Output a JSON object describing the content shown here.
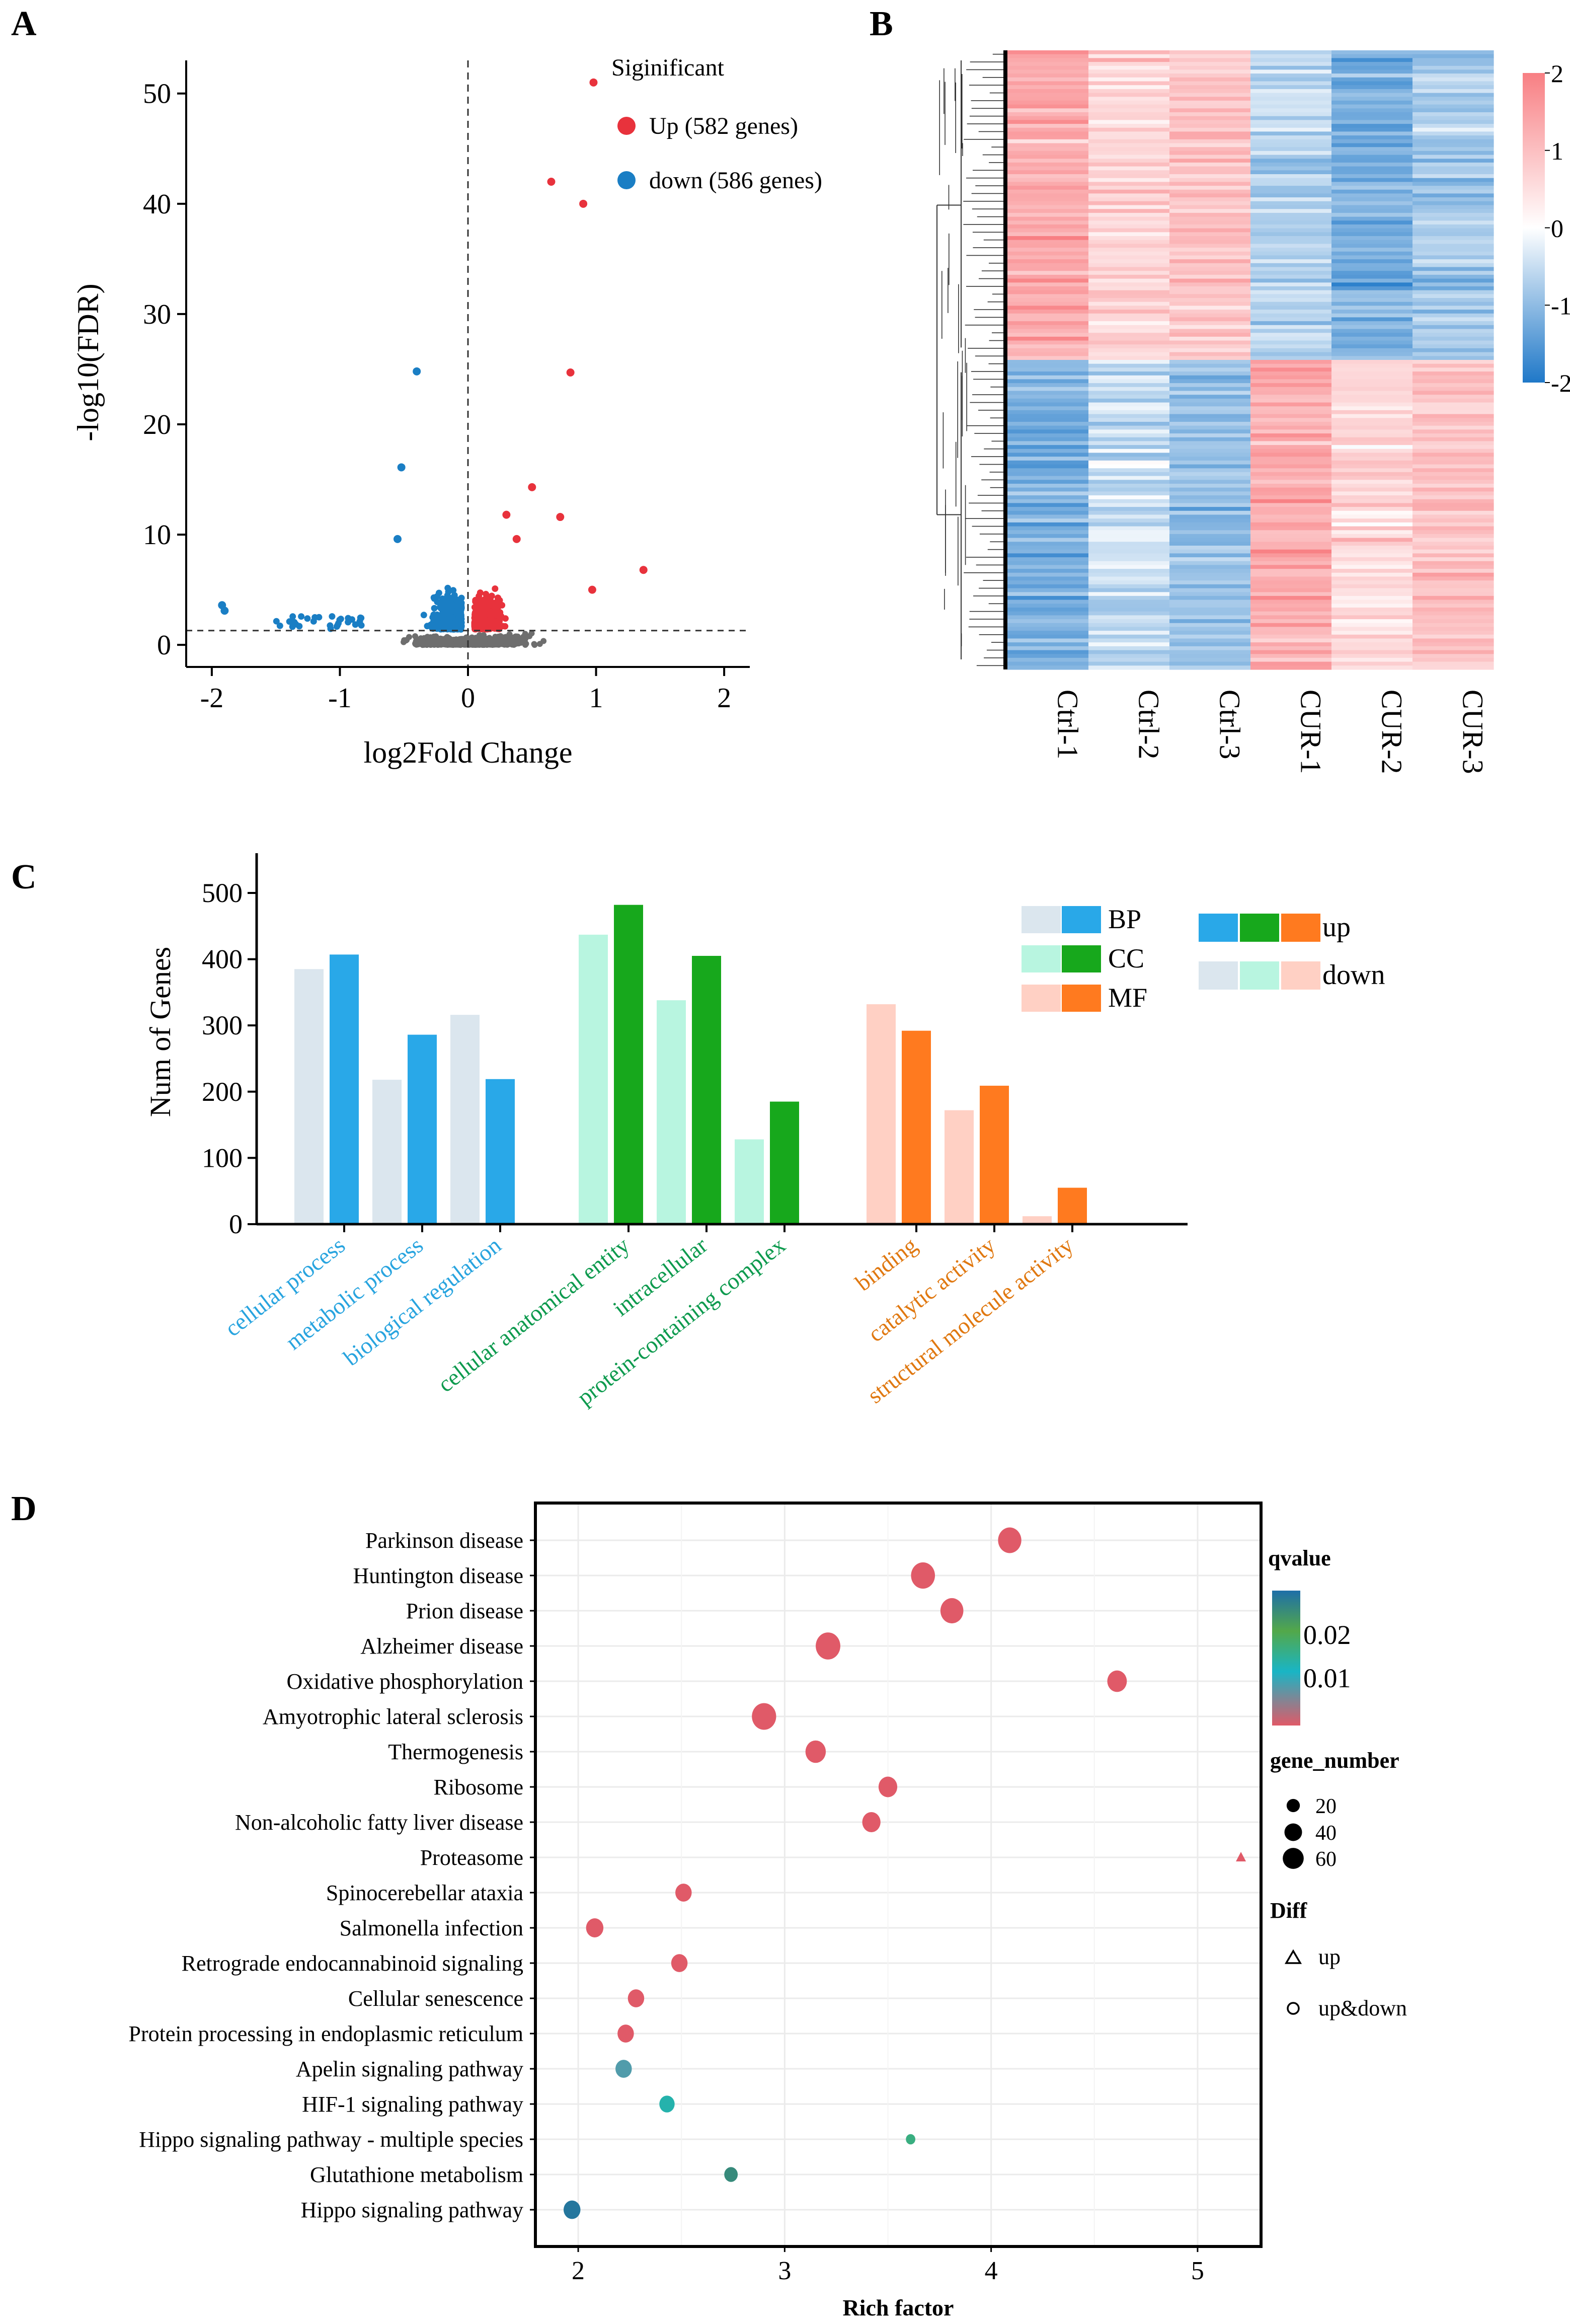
{
  "figure": {
    "panel_labels": [
      "A",
      "B",
      "C",
      "D"
    ]
  },
  "colors": {
    "up": "#e8323c",
    "down": "#1a7ec4",
    "ns": "#6e6e6e",
    "heat_low": "#1f78c8",
    "heat_mid": "#ffffff",
    "heat_high": "#f87f83",
    "bp_up": "#29a8e8",
    "bp_down": "#dbe6ee",
    "cc_up": "#17a81c",
    "cc_down": "#b8f5e0",
    "mf_up": "#ff7a1f",
    "mf_down": "#ffd0c4",
    "bp_text": "#28a4df",
    "cc_text": "#0d9a4e",
    "mf_text": "#e07810",
    "q_high": "#1e6fa8",
    "q_mid": "#19b5c5",
    "q_low": "#e05a68"
  },
  "chart_data": [
    {
      "type": "scatter",
      "id": "A",
      "xlabel": "log2Fold Change",
      "ylabel": "-log10(FDR)",
      "xlim": [
        -2.2,
        2.2
      ],
      "ylim": [
        -2,
        53
      ],
      "xticks": [
        "-2",
        "-1",
        "0",
        "1",
        "2"
      ],
      "xtick_values": [
        -2,
        -1,
        0,
        1,
        2
      ],
      "yticks": [
        "0",
        "10",
        "20",
        "30",
        "40",
        "50"
      ],
      "ytick_values": [
        0,
        10,
        20,
        30,
        40,
        50
      ],
      "threshold_y": 1.3,
      "threshold_x": 0,
      "legend": {
        "title": "Siginificant",
        "up_label": "Up (582 genes)",
        "down_label": "down (586 genes)"
      },
      "highlight_points": [
        {
          "x": 0.98,
          "y": 51,
          "group": "up"
        },
        {
          "x": 0.65,
          "y": 42,
          "group": "up"
        },
        {
          "x": 0.9,
          "y": 40,
          "group": "up"
        },
        {
          "x": 0.8,
          "y": 24.7,
          "group": "up"
        },
        {
          "x": 0.5,
          "y": 14.3,
          "group": "up"
        },
        {
          "x": 0.72,
          "y": 11.6,
          "group": "up"
        },
        {
          "x": 1.37,
          "y": 6.8,
          "group": "up"
        },
        {
          "x": 0.97,
          "y": 5,
          "group": "up"
        },
        {
          "x": 0.3,
          "y": 11.8,
          "group": "up"
        },
        {
          "x": 0.38,
          "y": 9.6,
          "group": "up"
        },
        {
          "x": -0.4,
          "y": 24.8,
          "group": "down"
        },
        {
          "x": -0.52,
          "y": 16.1,
          "group": "down"
        },
        {
          "x": -0.55,
          "y": 9.6,
          "group": "down"
        },
        {
          "x": -1.92,
          "y": 3.6,
          "group": "down"
        },
        {
          "x": -1.9,
          "y": 3.1,
          "group": "down"
        }
      ]
    },
    {
      "type": "heatmap",
      "id": "B",
      "columns": [
        "Ctrl-1",
        "Ctrl-2",
        "Ctrl-3",
        "CUR-1",
        "CUR-2",
        "CUR-3"
      ],
      "colorbar_ticks": [
        "2",
        "1",
        "0",
        "-1",
        "-2"
      ],
      "colorbar_values": [
        2,
        1,
        0,
        -1,
        -2
      ],
      "range": [
        -2,
        2
      ],
      "blocks": [
        {
          "name": "down in CUR",
          "fraction": 0.5,
          "column_means": [
            1.3,
            0.7,
            0.9,
            -0.6,
            -1.2,
            -0.8
          ]
        },
        {
          "name": "up in CUR",
          "fraction": 0.5,
          "column_means": [
            -1.2,
            -0.5,
            -0.9,
            1.3,
            0.6,
            1.0
          ]
        }
      ]
    },
    {
      "type": "bar",
      "id": "C",
      "ylabel": "Num of Genes",
      "ylim": [
        0,
        560
      ],
      "yticks": [
        "0",
        "100",
        "200",
        "300",
        "400",
        "500"
      ],
      "ytick_values": [
        0,
        100,
        200,
        300,
        400,
        500
      ],
      "legend_categories": [
        {
          "label": "BP"
        },
        {
          "label": "CC"
        },
        {
          "label": "MF"
        }
      ],
      "legend_direction": {
        "up": "up",
        "down": "down"
      },
      "groups": [
        {
          "category": "BP",
          "terms": [
            "cellular process",
            "metabolic process",
            "biological regulation"
          ],
          "down": [
            385,
            218,
            316
          ],
          "up": [
            407,
            286,
            219
          ]
        },
        {
          "category": "CC",
          "terms": [
            "cellular anatomical entity",
            "intracellular",
            "protein-containing complex"
          ],
          "down": [
            437,
            338,
            128
          ],
          "up": [
            482,
            405,
            185
          ]
        },
        {
          "category": "MF",
          "terms": [
            "binding",
            "catalytic activity",
            "structural molecule activity"
          ],
          "down": [
            332,
            172,
            12
          ],
          "up": [
            292,
            209,
            55
          ]
        }
      ]
    },
    {
      "type": "scatter",
      "id": "D",
      "xlabel": "Rich factor",
      "xlim": [
        1.8,
        5.3
      ],
      "xticks": [
        "2",
        "3",
        "4",
        "5"
      ],
      "xtick_values": [
        2,
        3,
        4,
        5
      ],
      "legend": {
        "qvalue_title": "qvalue",
        "qvalue_ticks": [
          "0.02",
          "0.01"
        ],
        "qvalue_range": [
          0.003,
          0.028
        ],
        "size_title": "gene_number",
        "size_ticks": [
          "20",
          "40",
          "60"
        ],
        "size_values": [
          20,
          40,
          60
        ],
        "shape_title": "Diff",
        "shape_up": "up",
        "shape_updown": "up&down"
      },
      "pathways": [
        {
          "name": "Parkinson disease",
          "rich": 4.09,
          "genes": 60,
          "q": 0.002,
          "shape": "circle"
        },
        {
          "name": "Huntington disease",
          "rich": 3.67,
          "genes": 64,
          "q": 0.002,
          "shape": "circle"
        },
        {
          "name": "Prion disease",
          "rich": 3.81,
          "genes": 58,
          "q": 0.002,
          "shape": "circle"
        },
        {
          "name": "Alzheimer disease",
          "rich": 3.21,
          "genes": 68,
          "q": 0.002,
          "shape": "circle"
        },
        {
          "name": "Oxidative phosphorylation",
          "rich": 4.61,
          "genes": 40,
          "q": 0.002,
          "shape": "circle"
        },
        {
          "name": "Amyotrophic lateral sclerosis",
          "rich": 2.9,
          "genes": 66,
          "q": 0.002,
          "shape": "circle"
        },
        {
          "name": "Thermogenesis",
          "rich": 3.15,
          "genes": 44,
          "q": 0.002,
          "shape": "circle"
        },
        {
          "name": "Ribosome",
          "rich": 3.5,
          "genes": 36,
          "q": 0.002,
          "shape": "circle"
        },
        {
          "name": "Non-alcoholic fatty liver disease",
          "rich": 3.42,
          "genes": 34,
          "q": 0.002,
          "shape": "circle"
        },
        {
          "name": "Proteasome",
          "rich": 5.21,
          "genes": 20,
          "q": 0.002,
          "shape": "triangle"
        },
        {
          "name": "Spinocerebellar ataxia",
          "rich": 2.51,
          "genes": 26,
          "q": 0.002,
          "shape": "circle"
        },
        {
          "name": "Salmonella infection",
          "rich": 2.08,
          "genes": 30,
          "q": 0.002,
          "shape": "circle"
        },
        {
          "name": "Retrograde endocannabinoid signaling",
          "rich": 2.49,
          "genes": 26,
          "q": 0.002,
          "shape": "circle"
        },
        {
          "name": "Cellular senescence",
          "rich": 2.28,
          "genes": 26,
          "q": 0.002,
          "shape": "circle"
        },
        {
          "name": "Protein processing in endoplasmic reticulum",
          "rich": 2.23,
          "genes": 26,
          "q": 0.002,
          "shape": "circle"
        },
        {
          "name": "Apelin signaling pathway",
          "rich": 2.22,
          "genes": 26,
          "q": 0.009,
          "shape": "circle"
        },
        {
          "name": "HIF-1 signaling pathway",
          "rich": 2.43,
          "genes": 22,
          "q": 0.013,
          "shape": "circle"
        },
        {
          "name": "Hippo signaling pathway - multiple species",
          "rich": 3.61,
          "genes": 6,
          "q": 0.016,
          "shape": "circle"
        },
        {
          "name": "Glutathione metabolism",
          "rich": 2.74,
          "genes": 16,
          "q": 0.024,
          "shape": "circle"
        },
        {
          "name": "Hippo signaling pathway",
          "rich": 1.97,
          "genes": 28,
          "q": 0.027,
          "shape": "circle"
        }
      ]
    }
  ]
}
